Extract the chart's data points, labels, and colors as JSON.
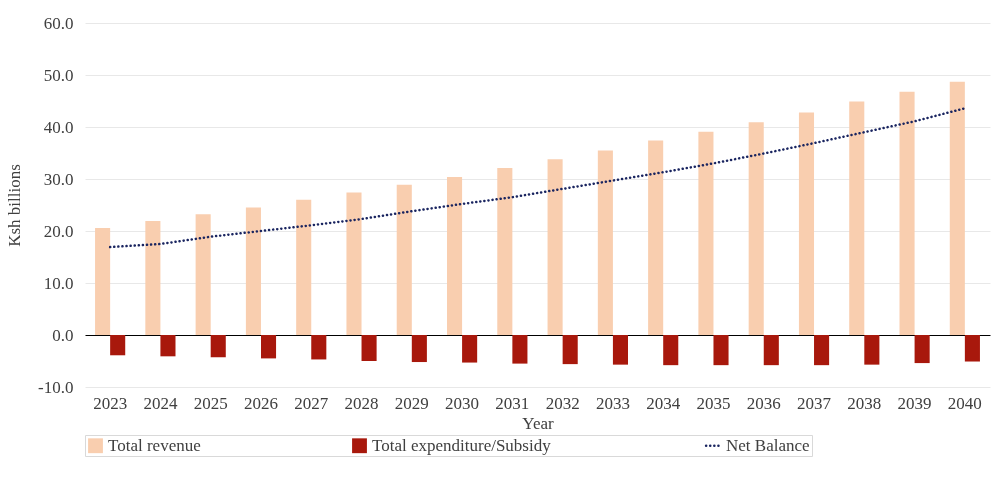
{
  "chart_data": {
    "type": "bar",
    "xlabel": "Year",
    "ylabel": "Ksh billions",
    "categories": [
      "2023",
      "2024",
      "2025",
      "2026",
      "2027",
      "2028",
      "2029",
      "2030",
      "2031",
      "2032",
      "2033",
      "2034",
      "2035",
      "2036",
      "2037",
      "2038",
      "2039",
      "2040"
    ],
    "series": [
      {
        "name": "Total revenue",
        "color": "#f9ceaf",
        "values": [
          20.6,
          21.9,
          23.2,
          24.5,
          26.0,
          27.4,
          28.9,
          30.4,
          32.1,
          33.8,
          35.5,
          37.4,
          39.1,
          40.9,
          42.8,
          44.9,
          46.8,
          48.7
        ]
      },
      {
        "name": "Total expenditure/Subsidy",
        "color": "#a8180c",
        "values": [
          -3.9,
          -4.1,
          -4.3,
          -4.5,
          -4.7,
          -5.0,
          -5.2,
          -5.3,
          -5.5,
          -5.6,
          -5.7,
          -5.8,
          -5.8,
          -5.8,
          -5.8,
          -5.7,
          -5.4,
          -5.1
        ]
      },
      {
        "name": "Net Balance",
        "color": "#1a2560",
        "type": "line",
        "line_style": "dotted",
        "values": [
          16.9,
          17.5,
          18.9,
          20.0,
          21.1,
          22.3,
          23.8,
          25.2,
          26.5,
          28.1,
          29.7,
          31.3,
          33.0,
          34.9,
          36.9,
          39.0,
          41.1,
          43.6
        ]
      }
    ],
    "ylim": [
      -10,
      60
    ],
    "yticks": [
      {
        "value": -10,
        "label": "-10.0"
      },
      {
        "value": 0,
        "label": "0.0"
      },
      {
        "value": 10,
        "label": "10.0"
      },
      {
        "value": 20,
        "label": "20.0"
      },
      {
        "value": 30,
        "label": "30.0"
      },
      {
        "value": 40,
        "label": "40.0"
      },
      {
        "value": 50,
        "label": "50.0"
      },
      {
        "value": 60,
        "label": "60.0"
      }
    ],
    "grid": "y",
    "legend": "bottom"
  }
}
